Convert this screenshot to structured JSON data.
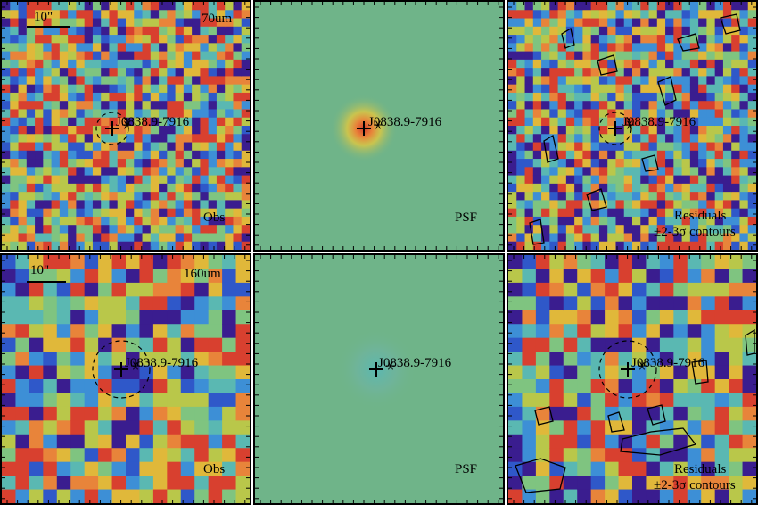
{
  "source_name": "J0838.9-7916",
  "scale_label": "10\"",
  "rows": [
    {
      "band": "70um",
      "panels": [
        {
          "kind": "obs",
          "label": "Obs"
        },
        {
          "kind": "psf",
          "label": "PSF"
        },
        {
          "kind": "res",
          "label_line1": "Residuals",
          "label_line2": "±2-3σ contours"
        }
      ]
    },
    {
      "band": "160um",
      "panels": [
        {
          "kind": "obs",
          "label": "Obs"
        },
        {
          "kind": "psf",
          "label": "PSF"
        },
        {
          "kind": "res",
          "label_line1": "Residuals",
          "label_line2": "±2-3σ contours"
        }
      ]
    }
  ],
  "colors": {
    "colormap": [
      "#3a1d8f",
      "#2f58c9",
      "#3d8fd6",
      "#5ab8b2",
      "#7fc480",
      "#b9c74a",
      "#e0b83a",
      "#e8843a",
      "#d8402f"
    ],
    "psf_background": "#6fb489",
    "contour": "#000000"
  }
}
